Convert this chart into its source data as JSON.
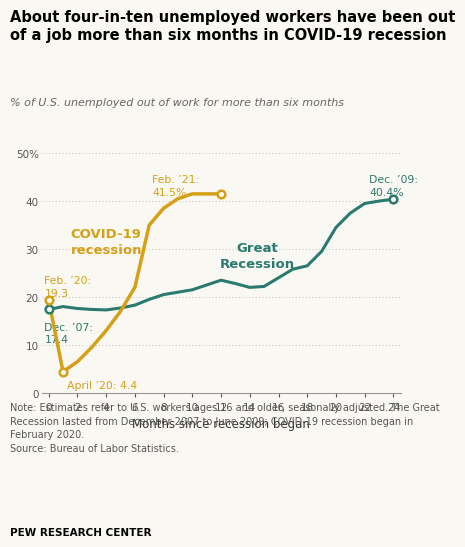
{
  "title": "About four-in-ten unemployed workers have been out\nof a job more than six months in COVID-19 recession",
  "subtitle": "% of U.S. unemployed out of work for more than six months",
  "note": "Note: Estimates refer to U.S. workers ages 16 and older, seasonally adjusted. The Great\nRecession lasted from December 2007 to June 2009; COVID-19 recession began in\nFebruary 2020.\nSource: Bureau of Labor Statistics.",
  "source_label": "PEW RESEARCH CENTER",
  "xlabel": "Months since recession began",
  "ylim": [
    0,
    52
  ],
  "xlim": [
    -0.5,
    24.5
  ],
  "yticks": [
    0,
    10,
    20,
    30,
    40,
    50
  ],
  "xticks": [
    0,
    2,
    4,
    6,
    8,
    10,
    12,
    14,
    16,
    18,
    20,
    22,
    24
  ],
  "color_covid": "#D4A017",
  "color_great": "#2A7A6F",
  "great_recession_x": [
    0,
    1,
    2,
    3,
    4,
    5,
    6,
    7,
    8,
    9,
    10,
    11,
    12,
    13,
    14,
    15,
    16,
    17,
    18,
    19,
    20,
    21,
    22,
    23,
    24
  ],
  "great_recession_y": [
    17.4,
    18.0,
    17.6,
    17.4,
    17.3,
    17.7,
    18.3,
    19.5,
    20.5,
    21.0,
    21.5,
    22.5,
    23.5,
    22.8,
    22.0,
    22.2,
    24.0,
    25.8,
    26.5,
    29.5,
    34.5,
    37.5,
    39.5,
    40.0,
    40.4
  ],
  "covid_x": [
    0,
    1,
    2,
    3,
    4,
    5,
    6,
    7,
    8,
    9,
    10,
    11,
    12
  ],
  "covid_y": [
    19.3,
    4.4,
    6.5,
    9.5,
    13.0,
    17.0,
    22.0,
    35.0,
    38.5,
    40.5,
    41.5,
    41.5,
    41.5
  ],
  "label_covid": "COVID-19\nrecession",
  "label_great": "Great\nRecession",
  "background_color": "#faf8f3"
}
